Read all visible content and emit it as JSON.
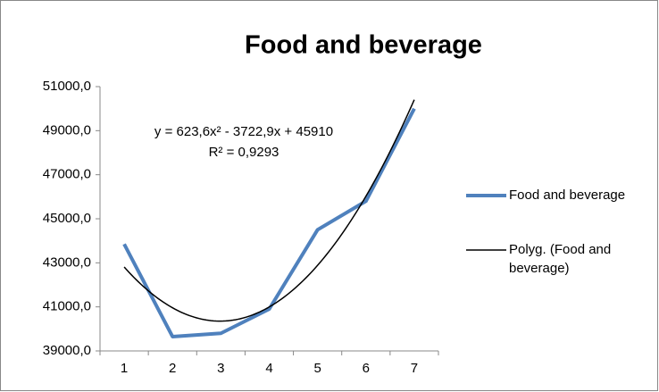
{
  "chart_data": {
    "type": "line",
    "title": "Food and beverage",
    "categories": [
      "1",
      "2",
      "3",
      "4",
      "5",
      "6",
      "7"
    ],
    "series": [
      {
        "name": "Food and beverage",
        "color": "#4f81bd",
        "values": [
          43850,
          39650,
          39800,
          40900,
          44500,
          45800,
          50000
        ]
      }
    ],
    "trendline": {
      "name": "Polyg. (Food and beverage)",
      "color": "#000000",
      "coefficients": [
        45910,
        -3722.9,
        623.6
      ],
      "equation": "y = 623,6x² - 3722,9x + 45910",
      "r_squared_label": "R² = 0,9293"
    },
    "ylim": [
      39000,
      51000
    ],
    "yticks": [
      {
        "value": 39000,
        "label": "39000,0"
      },
      {
        "value": 41000,
        "label": "41000,0"
      },
      {
        "value": 43000,
        "label": "43000,0"
      },
      {
        "value": 45000,
        "label": "45000,0"
      },
      {
        "value": 47000,
        "label": "47000,0"
      },
      {
        "value": 49000,
        "label": "49000,0"
      },
      {
        "value": 51000,
        "label": "51000,0"
      }
    ],
    "grid": false,
    "legend": "right"
  }
}
